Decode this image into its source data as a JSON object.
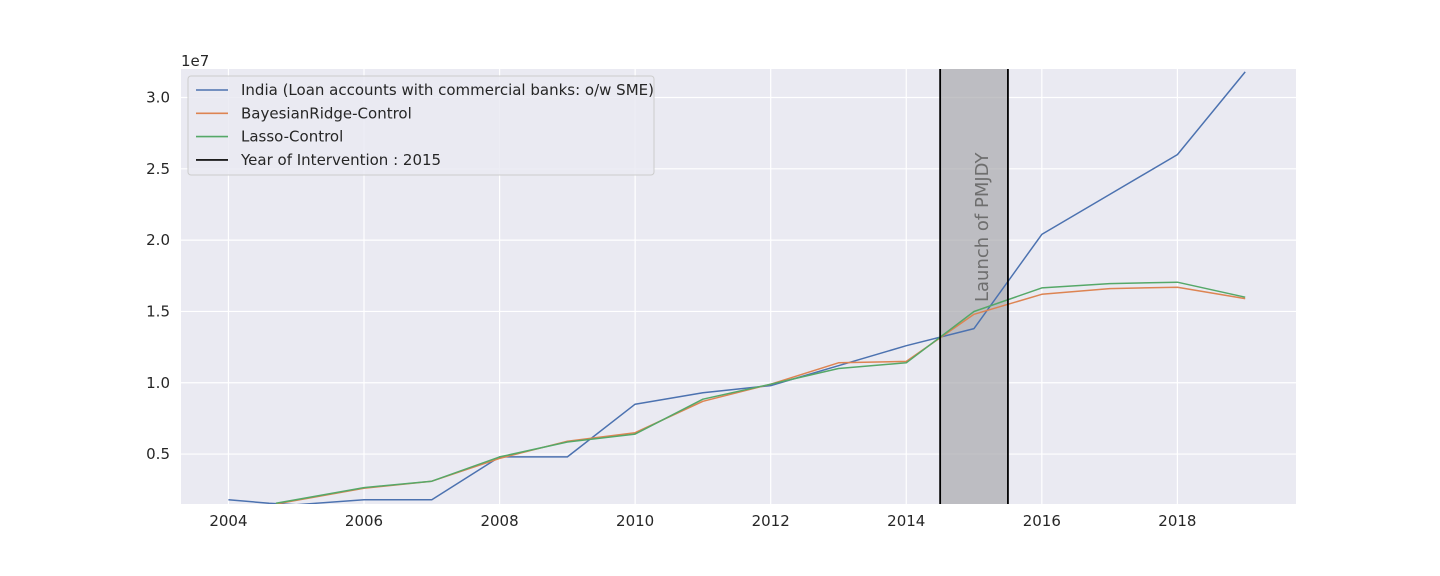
{
  "chart_data": {
    "type": "line",
    "title": "",
    "xlabel": "",
    "ylabel": "",
    "y_offset_label": "1e7",
    "x_ticks": [
      2004,
      2006,
      2008,
      2010,
      2012,
      2014,
      2016,
      2018
    ],
    "x_tick_labels": [
      "2004",
      "2006",
      "2008",
      "2010",
      "2012",
      "2014",
      "2016",
      "2018"
    ],
    "y_ticks": [
      0.5,
      1.0,
      1.5,
      2.0,
      2.5,
      3.0
    ],
    "y_tick_labels": [
      "0.5",
      "1.0",
      "1.5",
      "2.0",
      "2.5",
      "3.0"
    ],
    "xlim": [
      2003.3,
      2019.75
    ],
    "ylim": [
      0.15,
      3.2
    ],
    "grid": true,
    "legend_placement": "top-left",
    "series": [
      {
        "name": "India (Loan accounts with commercial banks: o/w SME)",
        "color": "#4c72b0",
        "x": [
          2004,
          2004.6,
          2005,
          2006,
          2007,
          2008,
          2009,
          2010,
          2011,
          2012,
          2013,
          2014,
          2015,
          2016,
          2017,
          2018,
          2019
        ],
        "y": [
          0.18,
          0.155,
          0.145,
          0.18,
          0.18,
          0.48,
          0.48,
          0.85,
          0.93,
          0.98,
          1.12,
          1.26,
          1.38,
          2.04,
          2.32,
          2.6,
          3.18
        ]
      },
      {
        "name": "BayesianRidge-Control",
        "color": "#dd8452",
        "x": [
          2004.7,
          2006,
          2007,
          2008,
          2009,
          2010,
          2011,
          2012,
          2013,
          2014,
          2015,
          2016,
          2017,
          2018,
          2019
        ],
        "y": [
          0.15,
          0.26,
          0.31,
          0.47,
          0.59,
          0.65,
          0.87,
          0.99,
          1.14,
          1.15,
          1.48,
          1.62,
          1.66,
          1.67,
          1.59
        ]
      },
      {
        "name": "Lasso-Control",
        "color": "#55a868",
        "x": [
          2004.7,
          2006,
          2007,
          2008,
          2009,
          2010,
          2011,
          2012,
          2013,
          2014,
          2015,
          2016,
          2017,
          2018,
          2019
        ],
        "y": [
          0.155,
          0.265,
          0.31,
          0.48,
          0.585,
          0.64,
          0.885,
          0.99,
          1.1,
          1.14,
          1.5,
          1.665,
          1.695,
          1.705,
          1.6
        ]
      }
    ],
    "intervention": {
      "label": "Year of Intervention : 2015",
      "color": "#000000",
      "lines_x": [
        2014.5,
        2015.5
      ],
      "shade_color": "#a9a9ae",
      "annotation": "Launch of PMJDY"
    }
  }
}
